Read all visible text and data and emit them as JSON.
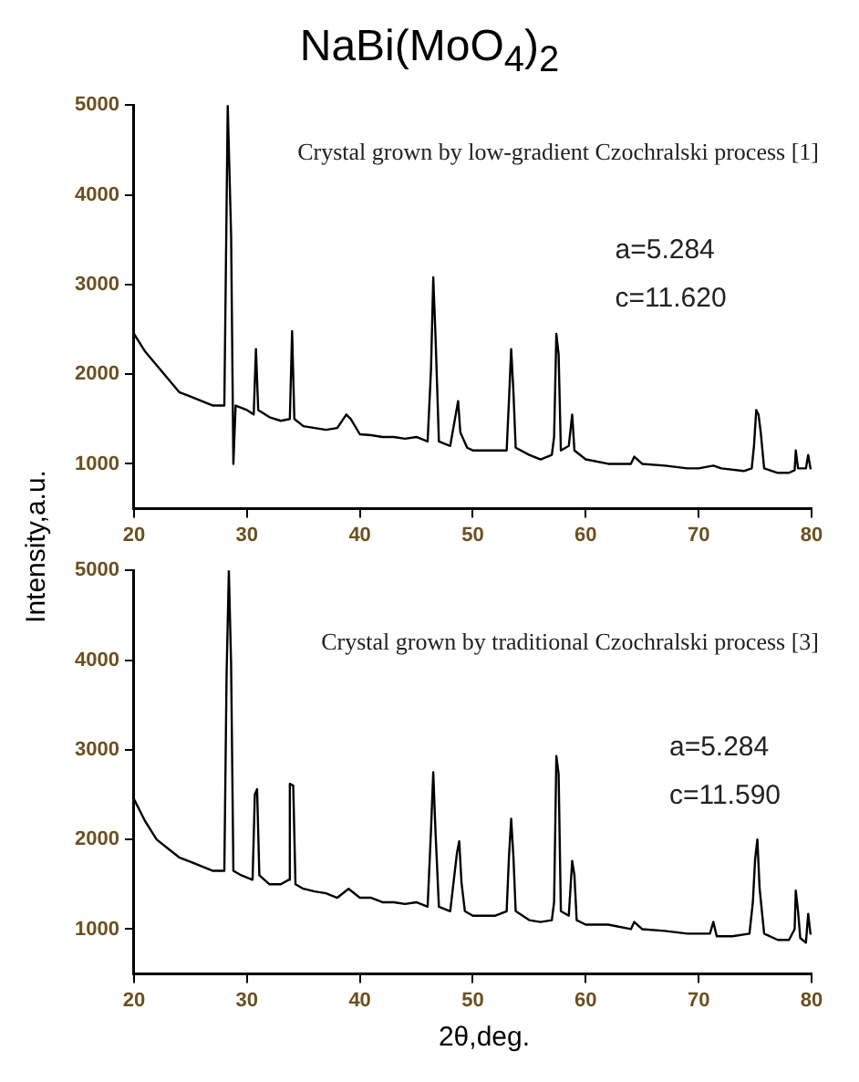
{
  "chart_data": [
    {
      "type": "line",
      "title": "NaBi(MoO$_{4}$)$_{2}$",
      "ylabel": "Intensity,a.u.",
      "marker": "none",
      "annotations": [
        "Crystal grown by low-gradient Czochralski process [1]",
        "a=5.284",
        "c=11.620"
      ],
      "xlim": [
        20,
        80
      ],
      "xticks": [
        20,
        30,
        40,
        50,
        60,
        70,
        80
      ],
      "ylim": [
        500,
        5000
      ],
      "yticks": [
        1000,
        2000,
        3000,
        4000,
        5000
      ],
      "series": [
        {
          "color": "#000000",
          "x": [
            20,
            21,
            22,
            23,
            24,
            25,
            26,
            27,
            28,
            28.3,
            28.6,
            28.8,
            29,
            30,
            30.6,
            30.8,
            31,
            32,
            33,
            33.8,
            34,
            34.2,
            35,
            36,
            37,
            38,
            38.8,
            39.2,
            40,
            41,
            42,
            43,
            44,
            45,
            46,
            46.3,
            46.5,
            46.7,
            47,
            48,
            48.7,
            48.9,
            49.5,
            50,
            51,
            52,
            53,
            53.2,
            53.4,
            53.6,
            53.8,
            55,
            56,
            57,
            57.2,
            57.4,
            57.6,
            57.8,
            58.5,
            58.8,
            59,
            60,
            62,
            64,
            64.3,
            65,
            67,
            69,
            70,
            71.3,
            72,
            74,
            74.7,
            74.9,
            75.1,
            75.3,
            75.5,
            75.8,
            77,
            78,
            78.5,
            78.6,
            78.8,
            79.5,
            79.7,
            79.9,
            80
          ],
          "values": [
            2450,
            2250,
            2100,
            1950,
            1800,
            1750,
            1700,
            1650,
            1650,
            5000,
            3550,
            1000,
            1650,
            1600,
            1550,
            2280,
            1600,
            1520,
            1480,
            1500,
            2480,
            1500,
            1420,
            1400,
            1380,
            1400,
            1550,
            1500,
            1330,
            1320,
            1300,
            1300,
            1280,
            1300,
            1250,
            2050,
            3080,
            2420,
            1250,
            1200,
            1700,
            1350,
            1180,
            1150,
            1150,
            1150,
            1150,
            1700,
            2280,
            1800,
            1180,
            1100,
            1050,
            1100,
            1300,
            2450,
            2220,
            1150,
            1200,
            1550,
            1150,
            1050,
            1000,
            1000,
            1080,
            1000,
            980,
            950,
            950,
            980,
            950,
            920,
            950,
            1200,
            1600,
            1550,
            1350,
            950,
            900,
            900,
            930,
            1150,
            950,
            950,
            1100,
            950,
            950
          ]
        }
      ]
    },
    {
      "type": "line",
      "xlabel": "2θ,deg.",
      "marker": "none",
      "annotations": [
        "Crystal grown by traditional Czochralski process [3]",
        "a=5.284",
        "c=11.590"
      ],
      "xlim": [
        20,
        80
      ],
      "xticks": [
        20,
        30,
        40,
        50,
        60,
        70,
        80
      ],
      "ylim": [
        500,
        5000
      ],
      "yticks": [
        1000,
        2000,
        3000,
        4000,
        5000
      ],
      "series": [
        {
          "color": "#000000",
          "x": [
            20,
            21,
            22,
            23,
            24,
            25,
            26,
            27,
            28,
            28.2,
            28.4,
            28.6,
            28.8,
            29.5,
            30.5,
            30.7,
            30.9,
            31.1,
            32,
            33,
            33.7,
            33.8,
            34.1,
            34.3,
            35,
            36,
            37,
            38,
            39,
            40,
            41,
            42,
            43,
            44,
            45,
            46,
            46.3,
            46.5,
            46.7,
            47,
            48,
            48.6,
            48.8,
            49,
            49.3,
            50,
            51,
            52,
            53,
            53.2,
            53.4,
            53.6,
            53.8,
            55,
            56,
            57,
            57.2,
            57.4,
            57.6,
            57.8,
            58.5,
            58.8,
            59,
            59.2,
            60,
            62,
            64,
            64.3,
            65,
            67,
            69,
            71,
            71.3,
            71.6,
            73,
            74.5,
            74.8,
            75,
            75.2,
            75.4,
            75.8,
            77,
            78,
            78.5,
            78.6,
            78.8,
            79,
            79.5,
            79.7,
            79.9,
            80
          ],
          "values": [
            2450,
            2200,
            2000,
            1900,
            1800,
            1750,
            1700,
            1650,
            1650,
            3850,
            5000,
            3950,
            1650,
            1600,
            1550,
            2500,
            2560,
            1600,
            1500,
            1500,
            1550,
            2620,
            2600,
            1500,
            1450,
            1420,
            1400,
            1350,
            1450,
            1350,
            1350,
            1300,
            1300,
            1280,
            1300,
            1250,
            2100,
            2750,
            2080,
            1250,
            1200,
            1850,
            1980,
            1520,
            1200,
            1150,
            1150,
            1150,
            1200,
            1800,
            2230,
            1800,
            1200,
            1100,
            1080,
            1100,
            1300,
            2930,
            2730,
            1200,
            1150,
            1760,
            1600,
            1100,
            1050,
            1050,
            1000,
            1080,
            1000,
            980,
            950,
            950,
            1080,
            920,
            920,
            950,
            1300,
            1780,
            2000,
            1450,
            950,
            880,
            880,
            1000,
            1430,
            1200,
            900,
            850,
            1170,
            950,
            950
          ]
        }
      ]
    }
  ]
}
